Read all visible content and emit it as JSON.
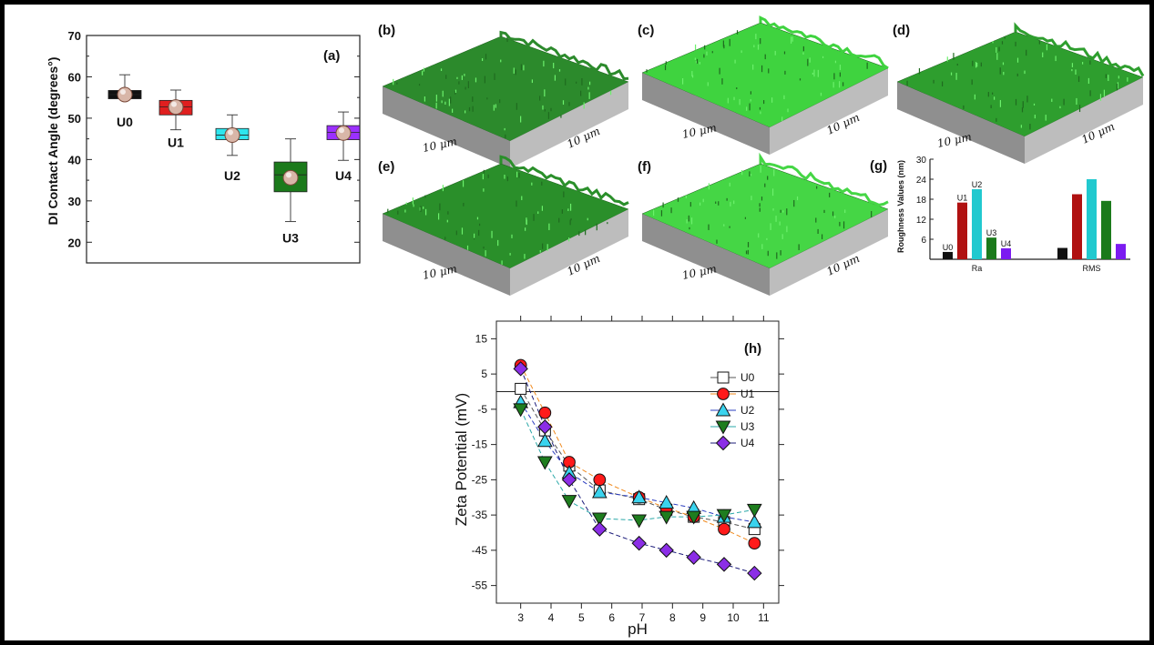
{
  "chart_data": [
    {
      "panel": "(a)",
      "type": "box",
      "ylabel": "DI Contact Angle (degrees°)",
      "ylim": [
        15,
        70
      ],
      "yticks": [
        20,
        30,
        40,
        50,
        60,
        70
      ],
      "categories": [
        "U0",
        "U1",
        "U2",
        "U3",
        "U4"
      ],
      "colors": [
        "#111111",
        "#e01f1f",
        "#2ee6ee",
        "#1b7a1b",
        "#9b30ff"
      ],
      "mean": [
        55.7,
        52.7,
        45.9,
        35.6,
        46.4
      ],
      "box_low": [
        54.7,
        50.8,
        44.8,
        32.2,
        44.8
      ],
      "box_high": [
        56.7,
        54.3,
        47.5,
        39.4,
        48.2
      ],
      "whisker_low": [
        55.2,
        47.2,
        41.0,
        25.0,
        39.8
      ],
      "whisker_high": [
        60.5,
        56.8,
        50.8,
        45.0,
        51.5
      ],
      "median": [
        55.7,
        52.7,
        45.9,
        36.3,
        46.6
      ]
    },
    {
      "panel": "(g)",
      "type": "bar",
      "ylabel": "Roughness Values (nm)",
      "ylim": [
        0,
        30
      ],
      "yticks": [
        6,
        12,
        18,
        24,
        30
      ],
      "categories": [
        "Ra",
        "RMS"
      ],
      "series": [
        {
          "name": "U0",
          "color": "#111111",
          "values": [
            2.2,
            3.4
          ]
        },
        {
          "name": "U1",
          "color": "#b01111",
          "values": [
            17.0,
            19.5
          ]
        },
        {
          "name": "U2",
          "color": "#21c9cf",
          "values": [
            21.0,
            24.0
          ]
        },
        {
          "name": "U3",
          "color": "#1b7a1b",
          "values": [
            6.5,
            17.5
          ]
        },
        {
          "name": "U4",
          "color": "#7b1bf0",
          "values": [
            3.3,
            4.6
          ]
        }
      ]
    },
    {
      "panel": "(h)",
      "type": "line",
      "xlabel": "pH",
      "ylabel": "Zeta Potential (mV)",
      "xlim": [
        2.2,
        11.5
      ],
      "ylim": [
        -60,
        20
      ],
      "xticks": [
        3,
        4,
        5,
        6,
        7,
        8,
        9,
        10,
        11
      ],
      "yticks": [
        15,
        5,
        -5,
        -15,
        -25,
        -35,
        -45,
        -55
      ],
      "zero_line": 0,
      "legend_position": "right",
      "series": [
        {
          "name": "U0",
          "marker": "square",
          "color": "#ffffff",
          "line": "#555555",
          "x": [
            3.0,
            3.8,
            4.6,
            5.6,
            6.9,
            7.8,
            8.7,
            9.7,
            10.7
          ],
          "y": [
            0.8,
            -11.0,
            -21.0,
            -28.0,
            -30.5,
            -33.5,
            -35.5,
            -37.0,
            -39.0
          ]
        },
        {
          "name": "U1",
          "marker": "circle",
          "color": "#ff1a1a",
          "line": "#f08a1e",
          "x": [
            3.0,
            3.8,
            4.6,
            5.6,
            6.9,
            7.8,
            8.7,
            9.7,
            10.7
          ],
          "y": [
            7.5,
            -6.0,
            -20.0,
            -25.0,
            -30.0,
            -33.0,
            -35.5,
            -39.0,
            -43.0
          ]
        },
        {
          "name": "U2",
          "marker": "triangle-up",
          "color": "#3ad3ee",
          "line": "#2a3cbf",
          "x": [
            3.0,
            3.8,
            4.6,
            5.6,
            6.9,
            7.8,
            8.7,
            9.7,
            10.7
          ],
          "y": [
            -3.0,
            -14.0,
            -23.0,
            -28.5,
            -30.0,
            -31.5,
            -33.0,
            -35.5,
            -37.0
          ]
        },
        {
          "name": "U3",
          "marker": "triangle-down",
          "color": "#1e7d1e",
          "line": "#2ba8a8",
          "x": [
            3.0,
            3.8,
            4.6,
            5.6,
            6.9,
            7.8,
            8.7,
            9.7,
            10.7
          ],
          "y": [
            -5.0,
            -20.0,
            -31.0,
            -36.0,
            -36.5,
            -35.5,
            -35.5,
            -35.0,
            -33.5
          ]
        },
        {
          "name": "U4",
          "marker": "diamond",
          "color": "#8b2ee6",
          "line": "#1c1c7a",
          "x": [
            3.0,
            3.8,
            4.6,
            5.6,
            6.9,
            7.8,
            8.7,
            9.7,
            10.7
          ],
          "y": [
            6.5,
            -10.0,
            -25.0,
            -39.0,
            -43.0,
            -45.0,
            -47.0,
            -49.0,
            -51.5
          ]
        }
      ]
    }
  ],
  "afm": {
    "panels": [
      {
        "tag": "(b)",
        "x_label": "10 μm",
        "y_label": "10 μm",
        "tone": "#2c8a2c"
      },
      {
        "tag": "(c)",
        "x_label": "10 μm",
        "y_label": "10 μm",
        "tone": "#3fd33f"
      },
      {
        "tag": "(d)",
        "x_label": "10 μm",
        "y_label": "10 μm",
        "tone": "#2e9e2e"
      },
      {
        "tag": "(e)",
        "x_label": "10 μm",
        "y_label": "10 μm",
        "tone": "#2a8f2a"
      },
      {
        "tag": "(f)",
        "x_label": "10 μm",
        "y_label": "10 μm",
        "tone": "#45d645"
      }
    ]
  }
}
